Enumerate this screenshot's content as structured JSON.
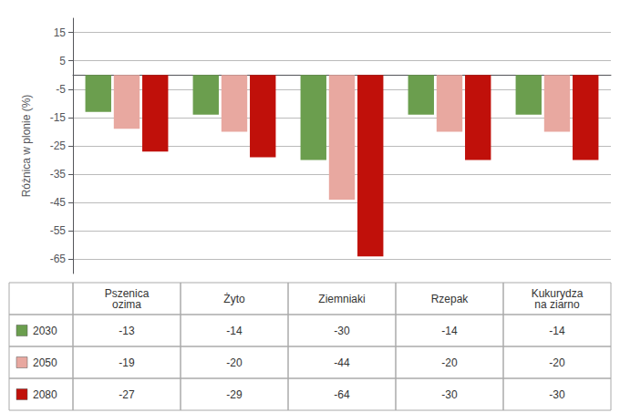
{
  "chart_data": {
    "type": "bar",
    "categories": [
      "Pszenica\nozima",
      "Żyto",
      "Ziemniaki",
      "Rzepak",
      "Kukurydza\nna ziarno"
    ],
    "series": [
      {
        "name": "2030",
        "color": "#6b9e4e",
        "values": [
          -13,
          -14,
          -30,
          -14,
          -14
        ]
      },
      {
        "name": "2050",
        "color": "#e8a8a0",
        "values": [
          -19,
          -20,
          -44,
          -20,
          -20
        ]
      },
      {
        "name": "2080",
        "color": "#c0100a",
        "values": [
          -27,
          -29,
          -64,
          -30,
          -30
        ]
      }
    ],
    "ylabel": "Różnica w plonie (%)",
    "ylim": [
      -70,
      20
    ],
    "yticks": [
      15,
      5,
      -5,
      -15,
      -25,
      -35,
      -45,
      -55,
      -65
    ],
    "grid": true,
    "tick_labels": "y"
  }
}
